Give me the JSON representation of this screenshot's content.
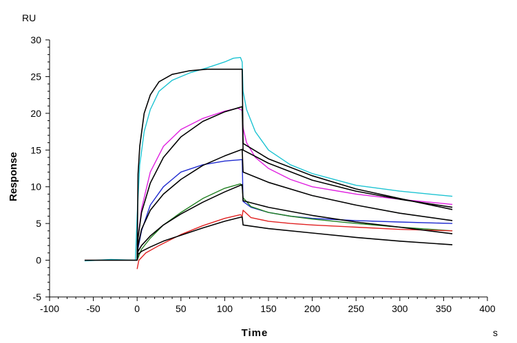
{
  "chart_data": {
    "type": "line",
    "xlabel": "Time",
    "ylabel": "Response",
    "x_unit": "s",
    "y_unit": "RU",
    "xlim": [
      -100,
      400
    ],
    "ylim": [
      -5,
      30
    ],
    "x_ticks": [
      -100,
      -50,
      0,
      50,
      100,
      150,
      200,
      250,
      300,
      350,
      400
    ],
    "y_ticks": [
      -5,
      0,
      5,
      10,
      15,
      20,
      25,
      30
    ],
    "x_tick_labels": [
      "-100",
      "-50",
      "0",
      "50",
      "100",
      "150",
      "200",
      "250",
      "300",
      "350",
      "400"
    ],
    "y_tick_labels": [
      "-5",
      "0",
      "5",
      "10",
      "15",
      "20",
      "25",
      "30"
    ],
    "grid": false,
    "legend": "none",
    "series": [
      {
        "color": "#1cc3d2",
        "x": [
          -60,
          -30,
          -2,
          0,
          3,
          8,
          15,
          25,
          40,
          60,
          80,
          100,
          110,
          118,
          120,
          121,
          125,
          135,
          150,
          175,
          200,
          250,
          300,
          360
        ],
        "y": [
          -0.1,
          0.1,
          0,
          6,
          13,
          17.5,
          20.5,
          23,
          24.5,
          25.5,
          26.2,
          27,
          27.5,
          27.6,
          27,
          23,
          20.5,
          17.5,
          15,
          13,
          11.8,
          10.2,
          9.4,
          8.7
        ]
      },
      {
        "color": "#e020e0",
        "x": [
          0,
          5,
          15,
          30,
          50,
          75,
          100,
          115,
          120,
          121,
          125,
          135,
          150,
          175,
          200,
          250,
          300,
          360
        ],
        "y": [
          2,
          7,
          12,
          15.5,
          17.8,
          19.3,
          20.3,
          20.7,
          20.4,
          18,
          16,
          14,
          12.5,
          11,
          10,
          9,
          8.3,
          7.6
        ]
      },
      {
        "color": "#1e2ad0",
        "x": [
          0,
          5,
          15,
          30,
          50,
          75,
          100,
          120,
          121,
          130,
          150,
          175,
          200,
          250,
          300,
          360
        ],
        "y": [
          1,
          4,
          7.5,
          10,
          12,
          13,
          13.5,
          13.7,
          8,
          7.2,
          6.5,
          6,
          5.7,
          5.4,
          5.2,
          5
        ]
      },
      {
        "color": "#208020",
        "x": [
          0,
          5,
          15,
          30,
          50,
          75,
          100,
          118,
          120,
          121,
          130,
          150,
          175,
          200,
          250,
          300,
          360
        ],
        "y": [
          0,
          1.5,
          3,
          4.8,
          6.5,
          8.4,
          9.8,
          10.4,
          10,
          8.5,
          7.3,
          6.5,
          6,
          5.6,
          5,
          4.5,
          4
        ]
      },
      {
        "color": "#e02020",
        "x": [
          0,
          2,
          10,
          25,
          50,
          75,
          100,
          118,
          120,
          121,
          130,
          150,
          175,
          200,
          250,
          300,
          360
        ],
        "y": [
          -1.2,
          0,
          1,
          2,
          3.5,
          4.7,
          5.7,
          6.2,
          6,
          6.8,
          5.8,
          5.3,
          5,
          4.8,
          4.5,
          4.2,
          4
        ]
      },
      {
        "color": "#000000",
        "x": [
          -60,
          -1,
          0,
          1,
          3,
          8,
          15,
          25,
          40,
          60,
          80,
          100,
          120,
          121,
          150,
          200,
          250,
          300,
          360
        ],
        "y": [
          0,
          0,
          0,
          11.7,
          15.5,
          20,
          22.5,
          24.3,
          25.3,
          25.8,
          26,
          26,
          26,
          15.9,
          13.8,
          11.5,
          9.7,
          8.4,
          6.9
        ]
      },
      {
        "color": "#000000",
        "x": [
          0,
          1,
          5,
          15,
          30,
          50,
          75,
          100,
          120,
          121,
          150,
          200,
          250,
          300,
          360
        ],
        "y": [
          0,
          3,
          6.5,
          10.5,
          14,
          16.8,
          18.9,
          20.2,
          20.9,
          15,
          13.2,
          10.9,
          9.4,
          8.3,
          7.2
        ]
      },
      {
        "color": "#000000",
        "x": [
          0,
          1,
          5,
          15,
          30,
          50,
          75,
          100,
          120,
          121,
          150,
          200,
          250,
          300,
          360
        ],
        "y": [
          0,
          2,
          4.2,
          6.8,
          9,
          11,
          12.9,
          14.2,
          15.1,
          12,
          10.6,
          8.8,
          7.5,
          6.4,
          5.4
        ]
      },
      {
        "color": "#000000",
        "x": [
          0,
          1,
          5,
          15,
          30,
          50,
          75,
          100,
          120,
          121,
          150,
          200,
          250,
          300,
          360
        ],
        "y": [
          0,
          1.2,
          2,
          3.3,
          4.8,
          6.3,
          7.9,
          9.3,
          10.3,
          8.1,
          7.2,
          6.1,
          5.2,
          4.5,
          3.6
        ]
      },
      {
        "color": "#000000",
        "x": [
          0,
          1,
          5,
          15,
          30,
          50,
          75,
          100,
          120,
          121,
          150,
          200,
          250,
          300,
          360
        ],
        "y": [
          0,
          0.8,
          1.2,
          1.8,
          2.6,
          3.4,
          4.4,
          5.3,
          5.9,
          4.8,
          4.3,
          3.7,
          3.1,
          2.6,
          2.1
        ]
      }
    ]
  }
}
